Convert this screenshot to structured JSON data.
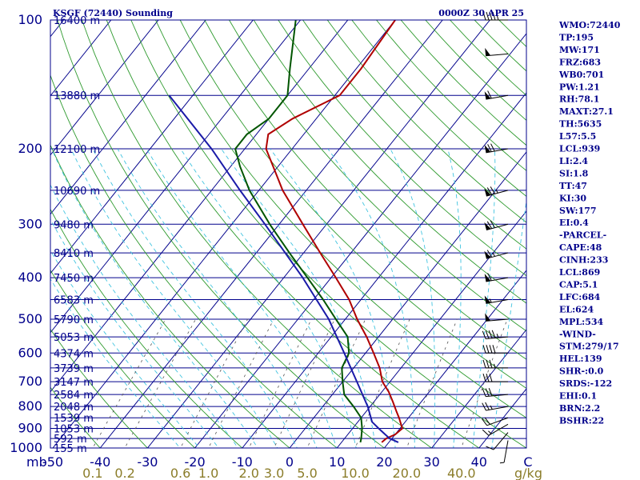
{
  "header": {
    "station": "KSGF (72440) Sounding",
    "time": "0000Z 30 APR 25"
  },
  "stats": [
    "WMO:72440",
    "TP:195",
    "MW:171",
    "FRZ:683",
    "WB0:701",
    "PW:1.21",
    "RH:78.1",
    "MAXT:27.1",
    "TH:5635",
    "L57:5.5",
    "LCL:939",
    "LI:2.4",
    "SI:1.8",
    "TT:47",
    "KI:30",
    "SW:177",
    "EI:0.4",
    "-PARCEL-",
    "CAPE:48",
    "CINH:233",
    "LCL:869",
    "CAP:5.1",
    "LFC:684",
    "EL:624",
    "MPL:534",
    "-WIND-",
    "STM:279/17",
    "HEL:139",
    "SHR-:0.0",
    "SRDS:-122",
    "EHI:0.1",
    "BRN:2.2",
    "BSHR:22"
  ],
  "colors": {
    "isobar": "#00008b",
    "isotherm": "#00008b",
    "dry_adiabat": "#2e9a2e",
    "moist_adiabat": "#40c4e0",
    "mixing_ratio": "#555555",
    "temperature": "#b00000",
    "dewpoint": "#005500",
    "parcel": "#1a1aa8",
    "wind_barb": "#000000"
  },
  "chart_data": {
    "type": "line",
    "title": "KSGF (72440) Sounding 0000Z 30 APR 25",
    "diagram": "skew-T log-P",
    "y_scale": "log (pressure, inverted)",
    "ylim": [
      1000,
      100
    ],
    "xlim": [
      -50,
      50
    ],
    "pressure_ticks": [
      {
        "p": 100,
        "label": "100",
        "height": "16400 m"
      },
      {
        "p": 150,
        "label": "",
        "height": "13880 m"
      },
      {
        "p": 200,
        "label": "200",
        "height": "12100 m"
      },
      {
        "p": 250,
        "label": "",
        "height": "10690 m"
      },
      {
        "p": 300,
        "label": "300",
        "height": "9480 m"
      },
      {
        "p": 350,
        "label": "",
        "height": "8410 m"
      },
      {
        "p": 400,
        "label": "400",
        "height": "7450 m"
      },
      {
        "p": 450,
        "label": "",
        "height": "6583 m"
      },
      {
        "p": 500,
        "label": "500",
        "height": "5790 m"
      },
      {
        "p": 550,
        "label": "",
        "height": "5053 m"
      },
      {
        "p": 600,
        "label": "600",
        "height": "4374 m"
      },
      {
        "p": 650,
        "label": "",
        "height": "3739 m"
      },
      {
        "p": 700,
        "label": "700",
        "height": "3147 m"
      },
      {
        "p": 750,
        "label": "",
        "height": "2584 m"
      },
      {
        "p": 800,
        "label": "800",
        "height": "2048 m"
      },
      {
        "p": 850,
        "label": "",
        "height": "1539 m"
      },
      {
        "p": 900,
        "label": "900",
        "height": "1053 m"
      },
      {
        "p": 950,
        "label": "",
        "height": "592 m"
      },
      {
        "p": 1000,
        "label": "1000",
        "height": "155 m"
      }
    ],
    "pressure_unit": "mb",
    "temp_ticks": [
      -50,
      -40,
      -30,
      -20,
      -10,
      0,
      10,
      20,
      30,
      40
    ],
    "temp_unit": "C",
    "mixing_ratio_ticks": [
      "0.1",
      "0.2",
      "0.6",
      "1.0",
      "2.0",
      "3.0",
      "5.0",
      "10.0",
      "20.0",
      "40.0"
    ],
    "mixing_ratio_unit": "g/kg",
    "series": [
      {
        "points": [
          {
            "p": 970,
            "t": 18.5
          },
          {
            "p": 950,
            "t": 18.8
          },
          {
            "p": 930,
            "t": 20.0
          },
          {
            "p": 900,
            "t": 20.5
          },
          {
            "p": 850,
            "t": 18.0
          },
          {
            "p": 820,
            "t": 16.3
          },
          {
            "p": 780,
            "t": 14.0
          },
          {
            "p": 740,
            "t": 11.5
          },
          {
            "p": 700,
            "t": 8.4
          },
          {
            "p": 650,
            "t": 5.5
          },
          {
            "p": 600,
            "t": 1.7
          },
          {
            "p": 550,
            "t": -2.5
          },
          {
            "p": 500,
            "t": -7.5
          },
          {
            "p": 450,
            "t": -12.5
          },
          {
            "p": 400,
            "t": -19.0
          },
          {
            "p": 350,
            "t": -26.5
          },
          {
            "p": 300,
            "t": -35.0
          },
          {
            "p": 250,
            "t": -45.0
          },
          {
            "p": 220,
            "t": -51.0
          },
          {
            "p": 200,
            "t": -55.5
          },
          {
            "p": 185,
            "t": -57.5
          },
          {
            "p": 170,
            "t": -55.0
          },
          {
            "p": 150,
            "t": -49.0
          },
          {
            "p": 130,
            "t": -49.0
          },
          {
            "p": 100,
            "t": -50.0
          }
        ]
      },
      {
        "points": [
          {
            "p": 970,
            "t": 14.0
          },
          {
            "p": 950,
            "t": 13.5
          },
          {
            "p": 900,
            "t": 12.0
          },
          {
            "p": 850,
            "t": 10.0
          },
          {
            "p": 800,
            "t": 6.5
          },
          {
            "p": 750,
            "t": 2.5
          },
          {
            "p": 700,
            "t": 0.0
          },
          {
            "p": 650,
            "t": -2.5
          },
          {
            "p": 600,
            "t": -3.5
          },
          {
            "p": 550,
            "t": -6.5
          },
          {
            "p": 500,
            "t": -12.0
          },
          {
            "p": 450,
            "t": -18.0
          },
          {
            "p": 400,
            "t": -25.0
          },
          {
            "p": 350,
            "t": -33.0
          },
          {
            "p": 300,
            "t": -42.0
          },
          {
            "p": 250,
            "t": -52.0
          },
          {
            "p": 220,
            "t": -58.0
          },
          {
            "p": 200,
            "t": -62.0
          },
          {
            "p": 185,
            "t": -62.0
          },
          {
            "p": 170,
            "t": -60.0
          },
          {
            "p": 150,
            "t": -60.0
          },
          {
            "p": 130,
            "t": -64.0
          },
          {
            "p": 100,
            "t": -71.0
          }
        ]
      },
      {
        "points": [
          {
            "p": 970,
            "t": 22.0
          },
          {
            "p": 950,
            "t": 19.5
          },
          {
            "p": 900,
            "t": 15.5
          },
          {
            "p": 869,
            "t": 13.0
          },
          {
            "p": 800,
            "t": 9.5
          },
          {
            "p": 700,
            "t": 3.0
          },
          {
            "p": 600,
            "t": -4.5
          },
          {
            "p": 500,
            "t": -13.5
          },
          {
            "p": 400,
            "t": -26.0
          },
          {
            "p": 300,
            "t": -43.0
          },
          {
            "p": 250,
            "t": -54.0
          },
          {
            "p": 200,
            "t": -67.0
          },
          {
            "p": 150,
            "t": -85.0
          }
        ]
      }
    ],
    "wind_barbs": [
      {
        "p": 960,
        "dir": 190,
        "spd": 5
      },
      {
        "p": 920,
        "dir": 220,
        "spd": 10
      },
      {
        "p": 880,
        "dir": 240,
        "spd": 15
      },
      {
        "p": 850,
        "dir": 250,
        "spd": 20
      },
      {
        "p": 800,
        "dir": 260,
        "spd": 25
      },
      {
        "p": 750,
        "dir": 265,
        "spd": 30
      },
      {
        "p": 700,
        "dir": 270,
        "spd": 30
      },
      {
        "p": 650,
        "dir": 270,
        "spd": 35
      },
      {
        "p": 600,
        "dir": 270,
        "spd": 40
      },
      {
        "p": 550,
        "dir": 265,
        "spd": 45
      },
      {
        "p": 500,
        "dir": 265,
        "spd": 50
      },
      {
        "p": 450,
        "dir": 260,
        "spd": 55
      },
      {
        "p": 400,
        "dir": 260,
        "spd": 60
      },
      {
        "p": 350,
        "dir": 255,
        "spd": 65
      },
      {
        "p": 300,
        "dir": 255,
        "spd": 70
      },
      {
        "p": 250,
        "dir": 255,
        "spd": 75
      },
      {
        "p": 200,
        "dir": 260,
        "spd": 70
      },
      {
        "p": 150,
        "dir": 260,
        "spd": 60
      },
      {
        "p": 120,
        "dir": 265,
        "spd": 50
      },
      {
        "p": 100,
        "dir": 270,
        "spd": 45
      }
    ]
  }
}
